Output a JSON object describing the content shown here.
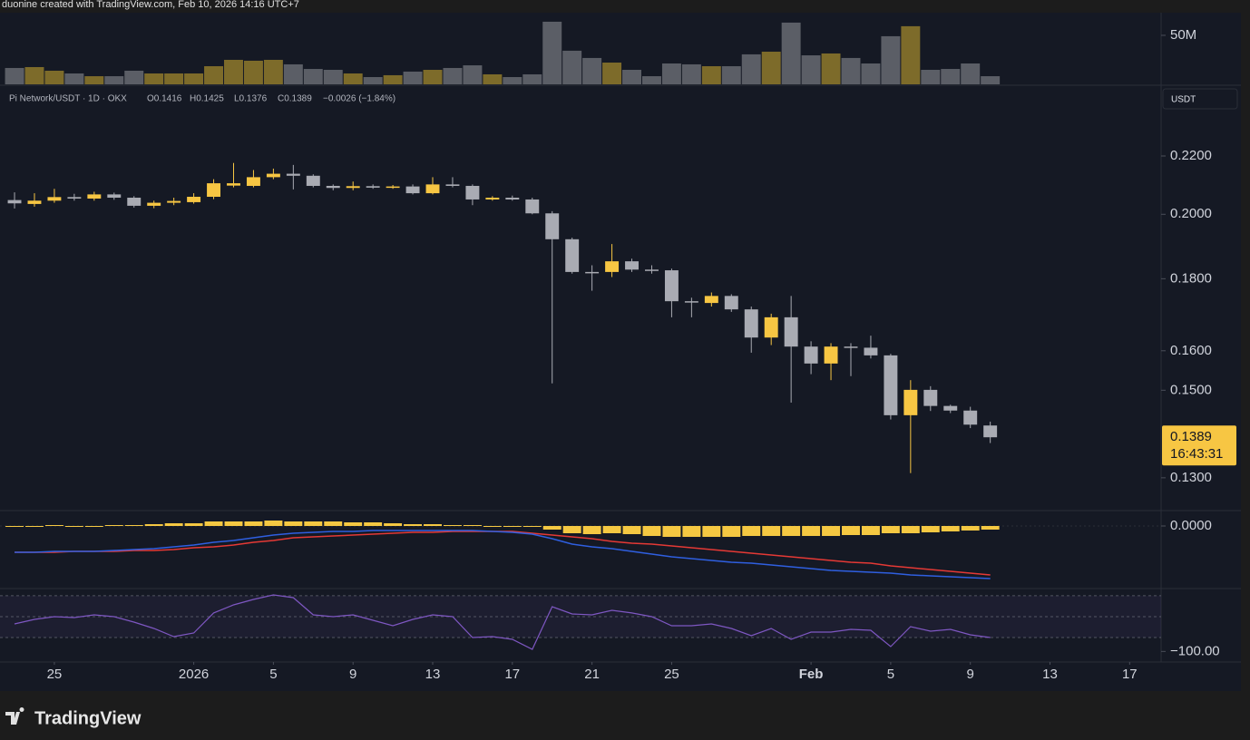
{
  "header": {
    "credit": "duonine created with TradingView.com, Feb 10, 2026 14:16 UTC+7",
    "logo": "TradingView",
    "currency_button": "USDT"
  },
  "chart_data": [
    {
      "type": "bar",
      "up_color": "#7d6b2a",
      "down_color": "#5b5e66",
      "ylim": [
        0,
        69400000
      ],
      "yticks": [
        {
          "value": 50000000,
          "label": "50M"
        }
      ],
      "values": [
        16700000,
        17600000,
        13900000,
        11100000,
        8300000,
        8300000,
        13900000,
        11100000,
        11100000,
        11100000,
        18500000,
        25000000,
        24100000,
        25000000,
        20400000,
        15700000,
        14800000,
        11100000,
        7400000,
        9300000,
        13000000,
        14800000,
        16700000,
        19400000,
        10200000,
        7400000,
        10200000,
        63900000,
        34300000,
        26900000,
        22200000,
        14800000,
        8300000,
        21300000,
        20400000,
        18500000,
        18500000,
        30600000,
        33300000,
        63000000,
        29600000,
        31500000,
        26900000,
        21300000,
        49100000,
        59300000,
        14800000,
        15700000,
        21300000,
        8300000
      ]
    },
    {
      "type": "candlestick",
      "symbol": "Pi Network/USDT · 1D · OKX",
      "ohlc_text": [
        "O0.1416",
        "H0.1425",
        "L0.1376",
        "C0.1389",
        "−0.0026 (−1.84%)"
      ],
      "up_color": "#f7c643",
      "down_color": "#a9abb3",
      "log_scale": true,
      "ylim": [
        0.1234,
        0.2466
      ],
      "yticks": [
        {
          "value": 0.22,
          "label": "0.2200"
        },
        {
          "value": 0.2,
          "label": "0.2000"
        },
        {
          "value": 0.18,
          "label": "0.1800"
        },
        {
          "value": 0.16,
          "label": "0.1600"
        },
        {
          "value": 0.15,
          "label": "0.1500"
        },
        {
          "value": 0.13,
          "label": "0.1300"
        }
      ],
      "price_badge": 0.1389,
      "countdown": "16:43:31",
      "xlim": [
        -0.73,
        57.58
      ],
      "xticks": [
        {
          "value": 2,
          "label": "25"
        },
        {
          "value": 9,
          "label": "2026"
        },
        {
          "value": 13,
          "label": "5"
        },
        {
          "value": 17,
          "label": "9"
        },
        {
          "value": 21,
          "label": "13"
        },
        {
          "value": 25,
          "label": "17"
        },
        {
          "value": 29,
          "label": "21"
        },
        {
          "value": 33,
          "label": "25"
        },
        {
          "value": 40,
          "label": "Feb"
        },
        {
          "value": 44,
          "label": "5"
        },
        {
          "value": 48,
          "label": "9"
        },
        {
          "value": 52,
          "label": "13"
        },
        {
          "value": 56,
          "label": "17"
        }
      ],
      "open": [
        0.2047,
        0.2034,
        0.2045,
        0.2057,
        0.2052,
        0.2066,
        0.2055,
        0.2028,
        0.2038,
        0.204,
        0.2058,
        0.2096,
        0.2095,
        0.2125,
        0.2137,
        0.213,
        0.2095,
        0.2088,
        0.2094,
        0.2089,
        0.2093,
        0.207,
        0.21,
        0.2095,
        0.2049,
        0.2055,
        0.2049,
        0.2003,
        0.192,
        0.182,
        0.182,
        0.1852,
        0.1827,
        0.1825,
        0.1735,
        0.173,
        0.175,
        0.1712,
        0.1635,
        0.169,
        0.1611,
        0.1567,
        0.1611,
        0.1608,
        0.1588,
        0.144,
        0.1501,
        0.1462,
        0.1451,
        0.1416
      ],
      "high": [
        0.2073,
        0.207,
        0.2085,
        0.2068,
        0.2075,
        0.2072,
        0.206,
        0.2045,
        0.2055,
        0.207,
        0.2118,
        0.2175,
        0.215,
        0.2155,
        0.2168,
        0.2135,
        0.21,
        0.211,
        0.21,
        0.2098,
        0.21,
        0.2125,
        0.2125,
        0.21,
        0.206,
        0.2062,
        0.2055,
        0.201,
        0.1925,
        0.184,
        0.1905,
        0.186,
        0.184,
        0.183,
        0.1745,
        0.176,
        0.1755,
        0.172,
        0.17,
        0.175,
        0.1625,
        0.162,
        0.162,
        0.164,
        0.1592,
        0.1525,
        0.151,
        0.1465,
        0.146,
        0.1425
      ],
      "low": [
        0.2019,
        0.2025,
        0.2038,
        0.2045,
        0.2045,
        0.2048,
        0.2022,
        0.202,
        0.203,
        0.2035,
        0.205,
        0.209,
        0.209,
        0.2118,
        0.2083,
        0.209,
        0.208,
        0.208,
        0.2085,
        0.2085,
        0.2066,
        0.2066,
        0.209,
        0.203,
        0.2045,
        0.2045,
        0.2,
        0.1517,
        0.1815,
        0.1765,
        0.1805,
        0.182,
        0.1815,
        0.169,
        0.169,
        0.172,
        0.1705,
        0.1595,
        0.1615,
        0.147,
        0.154,
        0.1525,
        0.1535,
        0.158,
        0.143,
        0.131,
        0.145,
        0.1445,
        0.141,
        0.1376
      ],
      "close": [
        0.2036,
        0.2045,
        0.2057,
        0.2052,
        0.2066,
        0.2055,
        0.2028,
        0.2038,
        0.2044,
        0.2058,
        0.2104,
        0.2104,
        0.2125,
        0.2137,
        0.213,
        0.2095,
        0.2088,
        0.2094,
        0.2089,
        0.2093,
        0.207,
        0.21,
        0.2095,
        0.2049,
        0.2055,
        0.2049,
        0.2003,
        0.192,
        0.182,
        0.1817,
        0.1852,
        0.1827,
        0.1825,
        0.1735,
        0.1732,
        0.175,
        0.1712,
        0.1635,
        0.169,
        0.1611,
        0.1567,
        0.1611,
        0.1608,
        0.1588,
        0.144,
        0.1501,
        0.1462,
        0.1451,
        0.1418,
        0.1389
      ]
    },
    {
      "type": "macd",
      "ylim": [
        -0.0136,
        0.003
      ],
      "yticks": [
        {
          "value": 0,
          "label": "0.0000"
        }
      ],
      "series": [
        {
          "kind": "histogram",
          "color": "#f5c842",
          "values": [
            0,
            0,
            0.0002,
            0,
            0,
            0.0002,
            0.0002,
            0.0004,
            0.0006,
            0.0006,
            0.001,
            0.001,
            0.001,
            0.0012,
            0.001,
            0.001,
            0.001,
            0.0008,
            0.0008,
            0.0006,
            0.0004,
            0.0004,
            0.0002,
            0.0002,
            0,
            -0.0002,
            -0.0002,
            -0.0008,
            -0.0016,
            -0.0018,
            -0.0016,
            -0.0018,
            -0.0022,
            -0.0024,
            -0.0024,
            -0.0024,
            -0.0024,
            -0.0022,
            -0.0022,
            -0.0022,
            -0.0022,
            -0.0022,
            -0.002,
            -0.002,
            -0.0016,
            -0.0016,
            -0.0014,
            -0.0012,
            -0.001,
            -0.0008
          ]
        },
        {
          "kind": "line",
          "color": "#e53935",
          "values": [
            -0.0058,
            -0.0058,
            -0.0058,
            -0.0056,
            -0.0056,
            -0.0056,
            -0.0054,
            -0.0054,
            -0.0052,
            -0.0048,
            -0.0046,
            -0.0042,
            -0.0036,
            -0.0032,
            -0.0026,
            -0.0024,
            -0.0022,
            -0.002,
            -0.0018,
            -0.0016,
            -0.0014,
            -0.0014,
            -0.0012,
            -0.0012,
            -0.0012,
            -0.0012,
            -0.0016,
            -0.002,
            -0.0024,
            -0.0028,
            -0.0034,
            -0.0038,
            -0.004,
            -0.0044,
            -0.0048,
            -0.0052,
            -0.0056,
            -0.006,
            -0.0064,
            -0.0068,
            -0.0072,
            -0.0076,
            -0.008,
            -0.0082,
            -0.0088,
            -0.0092,
            -0.0096,
            -0.01,
            -0.0104,
            -0.0108
          ]
        },
        {
          "kind": "line",
          "color": "#2f5fe0",
          "values": [
            -0.0058,
            -0.0058,
            -0.0056,
            -0.0056,
            -0.0056,
            -0.0054,
            -0.0052,
            -0.005,
            -0.0046,
            -0.0042,
            -0.0036,
            -0.0032,
            -0.0026,
            -0.002,
            -0.0016,
            -0.0014,
            -0.0012,
            -0.0012,
            -0.001,
            -0.001,
            -0.001,
            -0.001,
            -0.001,
            -0.001,
            -0.0012,
            -0.0014,
            -0.0018,
            -0.0028,
            -0.004,
            -0.0046,
            -0.005,
            -0.0056,
            -0.0062,
            -0.0068,
            -0.0072,
            -0.0076,
            -0.008,
            -0.0082,
            -0.0086,
            -0.009,
            -0.0094,
            -0.0098,
            -0.01,
            -0.0102,
            -0.0104,
            -0.0108,
            -0.011,
            -0.0112,
            -0.0114,
            -0.0116
          ]
        }
      ]
    },
    {
      "type": "line",
      "color": "#7e57c2",
      "ylim": [
        -112.6,
        -11
      ],
      "yticks": [
        {
          "value": -100,
          "label": "−100.00"
        }
      ],
      "levels": [
        -20,
        -50,
        -80
      ],
      "values": [
        -60.5,
        -54,
        -50.1,
        -51.4,
        -47.5,
        -50.1,
        -57.9,
        -67,
        -78.7,
        -73.5,
        -44.8,
        -33.1,
        -25.3,
        -18.8,
        -22.7,
        -47.5,
        -50.1,
        -47.5,
        -55.3,
        -63.1,
        -54,
        -47.5,
        -50.1,
        -80.1,
        -78.7,
        -82.7,
        -97,
        -35.7,
        -46.2,
        -47.5,
        -40.9,
        -44.8,
        -50.1,
        -63.1,
        -63.1,
        -60.5,
        -67,
        -77.4,
        -67,
        -82.7,
        -72.2,
        -72.2,
        -68.3,
        -69.6,
        -93.1,
        -64.4,
        -70.9,
        -68.3,
        -76.1,
        -80.1
      ]
    }
  ]
}
